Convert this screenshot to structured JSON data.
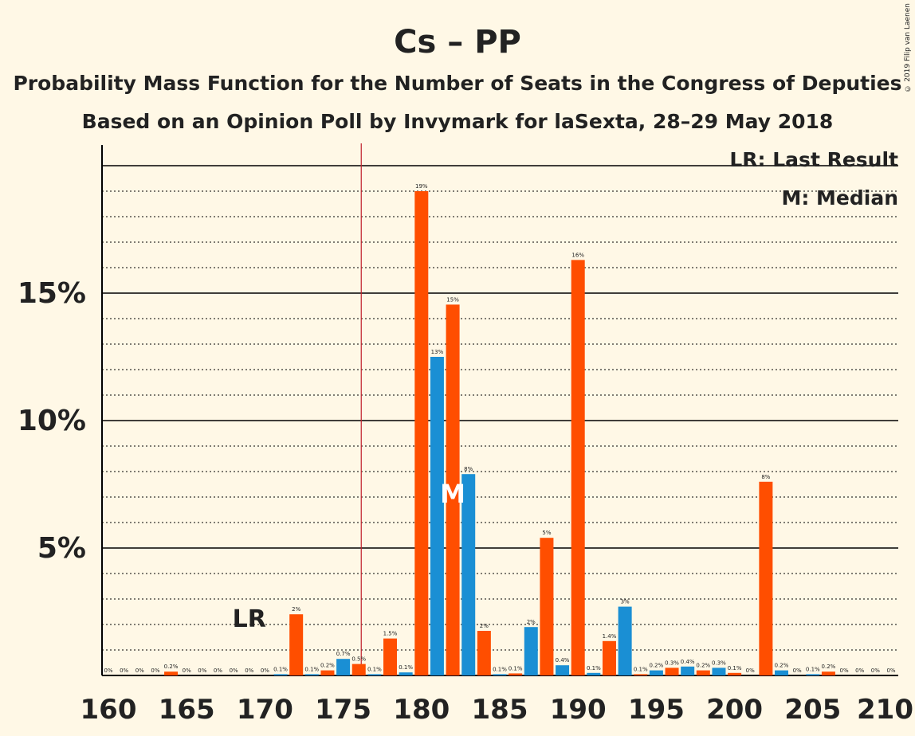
{
  "chart_data": {
    "type": "bar",
    "title": "Cs – PP",
    "subtitle": "Probability Mass Function for the Number of Seats in the Congress of Deputies",
    "subtitle2": "Based on an Opinion Poll by Invymark for laSexta, 28–29 May 2018",
    "legend": {
      "lr": "LR: Last Result",
      "m": "M: Median",
      "position": "top-right"
    },
    "last_result": {
      "seat": 176,
      "label": "LR"
    },
    "median": {
      "seat": 182,
      "label": "M"
    },
    "colors": {
      "even": "#ff4e00",
      "odd": "#1a8fd4",
      "last_result_line": "#c0202a",
      "background": "#fff8e6"
    },
    "xlim": [
      160,
      210
    ],
    "ylim": [
      0,
      20
    ],
    "x_ticks": [
      "160",
      "165",
      "170",
      "175",
      "180",
      "185",
      "190",
      "195",
      "200",
      "205",
      "210"
    ],
    "y_ticks": [
      {
        "value": 5,
        "label": "5%"
      },
      {
        "value": 10,
        "label": "10%"
      },
      {
        "value": 15,
        "label": "15%"
      }
    ],
    "seats": [
      160,
      161,
      162,
      163,
      164,
      165,
      166,
      167,
      168,
      169,
      170,
      171,
      172,
      173,
      174,
      175,
      176,
      177,
      178,
      179,
      180,
      181,
      182,
      183,
      184,
      185,
      186,
      187,
      188,
      189,
      190,
      191,
      192,
      193,
      194,
      195,
      196,
      197,
      198,
      199,
      200,
      201,
      202,
      203,
      204,
      205,
      206,
      207,
      208,
      209,
      210
    ],
    "values": [
      0,
      0,
      0,
      0,
      0.15,
      0,
      0,
      0,
      0,
      0,
      0,
      0.05,
      2.4,
      0.05,
      0.2,
      0.65,
      0.45,
      0.05,
      1.45,
      0.12,
      19.0,
      12.5,
      14.55,
      7.9,
      1.75,
      0.05,
      0.08,
      1.9,
      5.4,
      0.4,
      16.3,
      0.1,
      1.35,
      2.7,
      0.05,
      0.2,
      0.3,
      0.35,
      0.2,
      0.3,
      0.1,
      0,
      7.6,
      0.2,
      0,
      0.05,
      0.15,
      0,
      0,
      0,
      0
    ],
    "labels": [
      "0%",
      "0%",
      "0%",
      "0%",
      "0.2%",
      "0%",
      "0%",
      "0%",
      "0%",
      "0%",
      "0%",
      "0.1%",
      "2%",
      "0.1%",
      "0.2%",
      "0.7%",
      "0.5%",
      "0.1%",
      "1.5%",
      "0.1%",
      "19%",
      "13%",
      "15%",
      "8%",
      "2%",
      "0.1%",
      "0.1%",
      "2%",
      "5%",
      "0.4%",
      "16%",
      "0.1%",
      "1.4%",
      "3%",
      "0.1%",
      "0.2%",
      "0.3%",
      "0.4%",
      "0.2%",
      "0.3%",
      "0.1%",
      "0%",
      "8%",
      "0.2%",
      "0%",
      "0.1%",
      "0.2%",
      "0%",
      "0%",
      "0%",
      "0%"
    ]
  },
  "copyright": "© 2019 Filip van Laenen"
}
